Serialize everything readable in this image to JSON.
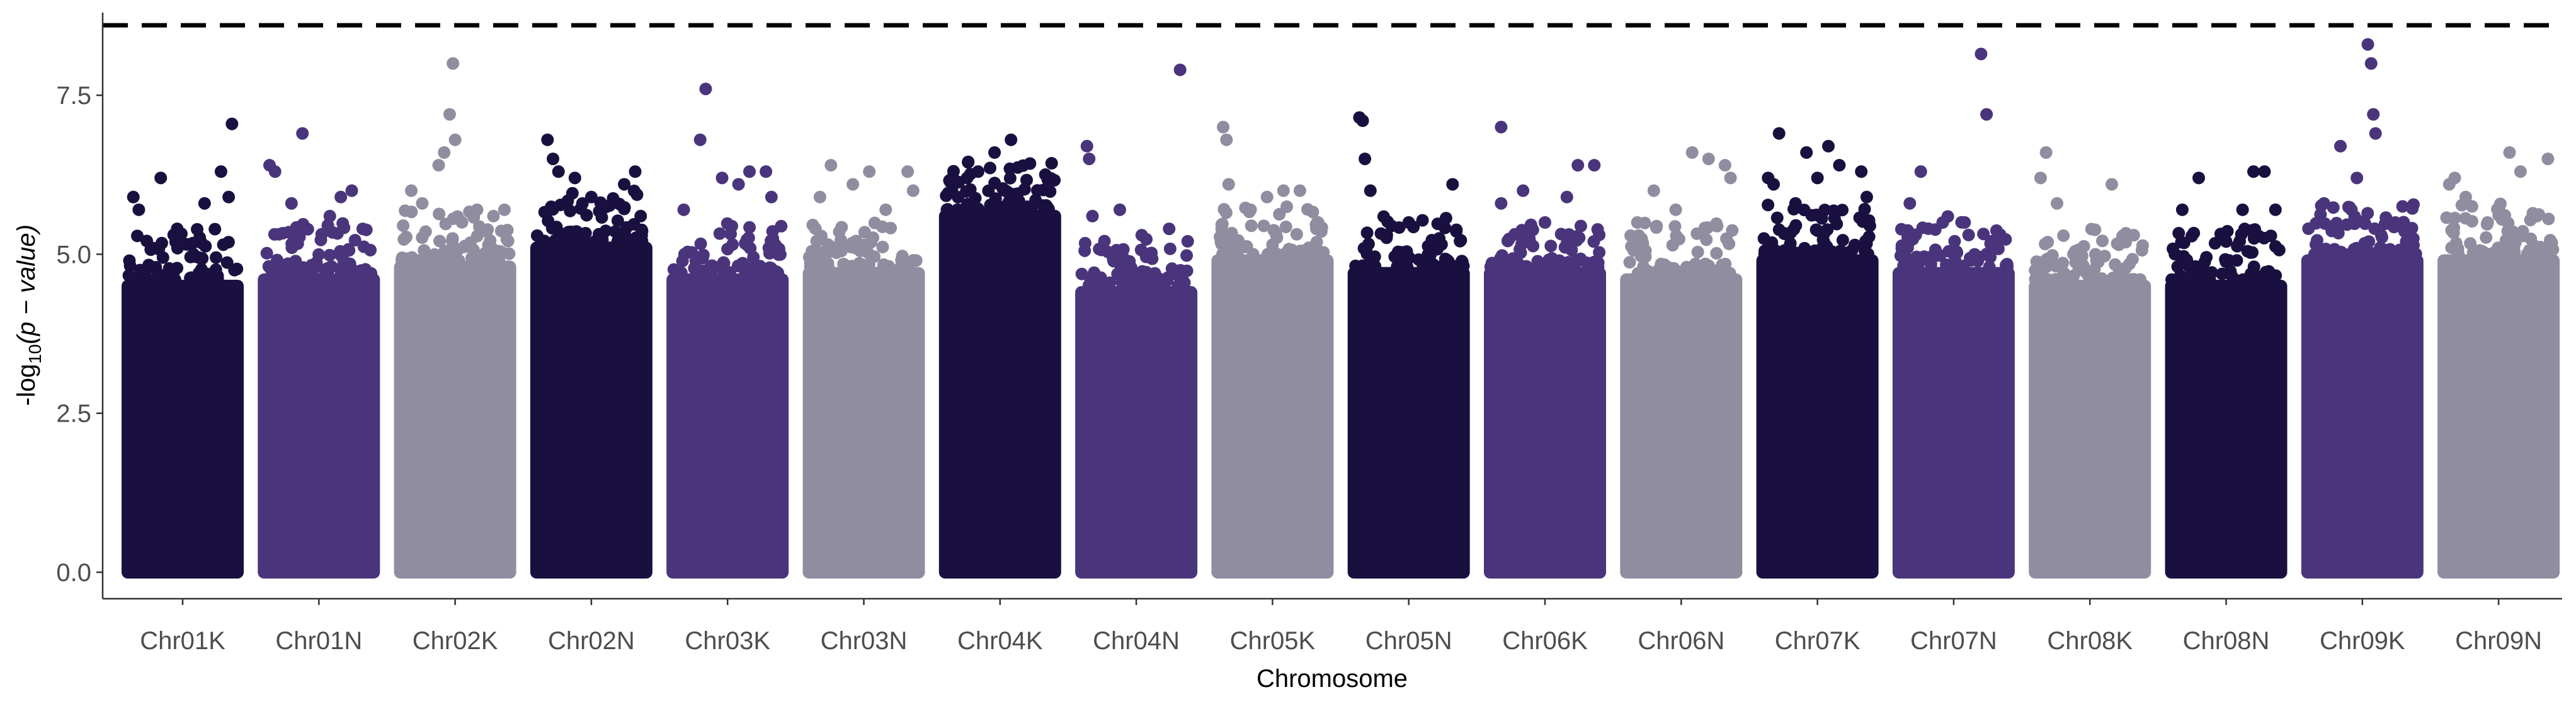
{
  "chart_data": {
    "type": "scatter",
    "subtype": "manhattan",
    "title": "",
    "xlabel": "Chromosome",
    "ylabel_prefix": "-log",
    "ylabel_sub": "10",
    "ylabel_expr": "(p − value)",
    "ylim": [
      0,
      8.8
    ],
    "yticks": [
      "0.0",
      "2.5",
      "5.0",
      "7.5"
    ],
    "ytick_values": [
      0,
      2.5,
      5.0,
      7.5
    ],
    "threshold": 8.6,
    "grid": false,
    "legend": "none",
    "palette": [
      "#1a1040",
      "#4a357c",
      "#918da0"
    ],
    "categories": [
      "Chr01K",
      "Chr01N",
      "Chr02K",
      "Chr02N",
      "Chr03K",
      "Chr03N",
      "Chr04K",
      "Chr04N",
      "Chr05K",
      "Chr05N",
      "Chr06K",
      "Chr06N",
      "Chr07K",
      "Chr07N",
      "Chr08K",
      "Chr08N",
      "Chr09K",
      "Chr09N"
    ],
    "series": [
      {
        "chromosome": "Chr01K",
        "dense_top": 4.6,
        "top_points": [
          [
            0.05,
            5.9
          ],
          [
            0.1,
            5.7
          ],
          [
            0.3,
            6.2
          ],
          [
            0.45,
            5.4
          ],
          [
            0.7,
            5.8
          ],
          [
            0.85,
            6.3
          ],
          [
            0.95,
            7.05
          ],
          [
            0.92,
            5.9
          ],
          [
            0.6,
            5.0
          ]
        ]
      },
      {
        "chromosome": "Chr01N",
        "dense_top": 4.7,
        "top_points": [
          [
            0.05,
            6.4
          ],
          [
            0.1,
            6.3
          ],
          [
            0.25,
            5.8
          ],
          [
            0.35,
            6.9
          ],
          [
            0.6,
            5.6
          ],
          [
            0.7,
            5.9
          ],
          [
            0.8,
            6.0
          ],
          [
            0.9,
            5.4
          ]
        ]
      },
      {
        "chromosome": "Chr02K",
        "dense_top": 4.9,
        "top_points": [
          [
            0.1,
            6.0
          ],
          [
            0.2,
            5.8
          ],
          [
            0.35,
            6.4
          ],
          [
            0.4,
            6.6
          ],
          [
            0.45,
            7.2
          ],
          [
            0.48,
            8.0
          ],
          [
            0.5,
            6.8
          ],
          [
            0.7,
            5.7
          ],
          [
            0.85,
            5.6
          ],
          [
            0.95,
            5.7
          ]
        ]
      },
      {
        "chromosome": "Chr02N",
        "dense_top": 5.2,
        "top_points": [
          [
            0.1,
            6.8
          ],
          [
            0.15,
            6.5
          ],
          [
            0.2,
            6.3
          ],
          [
            0.35,
            6.2
          ],
          [
            0.5,
            5.9
          ],
          [
            0.8,
            6.1
          ],
          [
            0.9,
            6.3
          ],
          [
            0.95,
            5.6
          ]
        ]
      },
      {
        "chromosome": "Chr03K",
        "dense_top": 4.7,
        "top_points": [
          [
            0.1,
            5.7
          ],
          [
            0.25,
            6.8
          ],
          [
            0.3,
            7.6
          ],
          [
            0.45,
            6.2
          ],
          [
            0.6,
            6.1
          ],
          [
            0.7,
            6.3
          ],
          [
            0.85,
            6.3
          ],
          [
            0.9,
            5.9
          ]
        ]
      },
      {
        "chromosome": "Chr03N",
        "dense_top": 4.8,
        "top_points": [
          [
            0.1,
            5.9
          ],
          [
            0.2,
            6.4
          ],
          [
            0.4,
            6.1
          ],
          [
            0.55,
            6.3
          ],
          [
            0.7,
            5.7
          ],
          [
            0.9,
            6.3
          ],
          [
            0.95,
            6.0
          ]
        ]
      },
      {
        "chromosome": "Chr04K",
        "dense_top": 5.7,
        "top_points": [
          [
            0.2,
            6.2
          ],
          [
            0.3,
            6.3
          ],
          [
            0.45,
            6.6
          ],
          [
            0.55,
            6.0
          ],
          [
            0.6,
            6.8
          ],
          [
            0.75,
            5.6
          ],
          [
            0.9,
            4.9
          ]
        ]
      },
      {
        "chromosome": "Chr04N",
        "dense_top": 4.5,
        "top_points": [
          [
            0.05,
            6.7
          ],
          [
            0.07,
            6.5
          ],
          [
            0.1,
            5.6
          ],
          [
            0.35,
            5.7
          ],
          [
            0.55,
            5.3
          ],
          [
            0.8,
            5.4
          ],
          [
            0.9,
            7.9
          ]
        ]
      },
      {
        "chromosome": "Chr05K",
        "dense_top": 5.0,
        "top_points": [
          [
            0.05,
            7.0
          ],
          [
            0.08,
            6.8
          ],
          [
            0.1,
            6.1
          ],
          [
            0.3,
            5.7
          ],
          [
            0.45,
            5.9
          ],
          [
            0.6,
            6.0
          ],
          [
            0.75,
            6.0
          ],
          [
            0.9,
            5.4
          ]
        ]
      },
      {
        "chromosome": "Chr05N",
        "dense_top": 4.8,
        "top_points": [
          [
            0.05,
            7.15
          ],
          [
            0.08,
            7.1
          ],
          [
            0.1,
            6.5
          ],
          [
            0.15,
            6.0
          ],
          [
            0.3,
            5.3
          ],
          [
            0.5,
            5.5
          ],
          [
            0.7,
            5.0
          ],
          [
            0.9,
            6.1
          ]
        ]
      },
      {
        "chromosome": "Chr06K",
        "dense_top": 4.8,
        "top_points": [
          [
            0.1,
            5.8
          ],
          [
            0.1,
            7.0
          ],
          [
            0.3,
            6.0
          ],
          [
            0.5,
            5.5
          ],
          [
            0.7,
            5.9
          ],
          [
            0.8,
            6.4
          ],
          [
            0.95,
            6.4
          ]
        ]
      },
      {
        "chromosome": "Chr06N",
        "dense_top": 4.7,
        "top_points": [
          [
            0.1,
            5.5
          ],
          [
            0.25,
            6.0
          ],
          [
            0.45,
            5.7
          ],
          [
            0.6,
            6.6
          ],
          [
            0.75,
            6.5
          ],
          [
            0.9,
            6.4
          ],
          [
            0.95,
            6.2
          ]
        ]
      },
      {
        "chromosome": "Chr07K",
        "dense_top": 5.0,
        "top_points": [
          [
            0.05,
            6.2
          ],
          [
            0.1,
            6.1
          ],
          [
            0.15,
            6.9
          ],
          [
            0.3,
            5.8
          ],
          [
            0.4,
            6.6
          ],
          [
            0.5,
            6.2
          ],
          [
            0.6,
            6.7
          ],
          [
            0.7,
            6.4
          ],
          [
            0.9,
            6.3
          ],
          [
            0.95,
            5.9
          ]
        ]
      },
      {
        "chromosome": "Chr07N",
        "dense_top": 4.8,
        "top_points": [
          [
            0.1,
            5.8
          ],
          [
            0.2,
            6.3
          ],
          [
            0.4,
            5.5
          ],
          [
            0.6,
            5.5
          ],
          [
            0.75,
            8.15
          ],
          [
            0.8,
            7.2
          ],
          [
            0.9,
            5.2
          ]
        ]
      },
      {
        "chromosome": "Chr08K",
        "dense_top": 4.6,
        "top_points": [
          [
            0.05,
            6.2
          ],
          [
            0.1,
            6.6
          ],
          [
            0.2,
            5.8
          ],
          [
            0.35,
            5.0
          ],
          [
            0.55,
            5.0
          ],
          [
            0.7,
            6.1
          ],
          [
            0.9,
            5.3
          ]
        ]
      },
      {
        "chromosome": "Chr08N",
        "dense_top": 4.6,
        "top_points": [
          [
            0.1,
            5.7
          ],
          [
            0.25,
            6.2
          ],
          [
            0.5,
            5.2
          ],
          [
            0.65,
            5.7
          ],
          [
            0.75,
            6.3
          ],
          [
            0.85,
            6.3
          ],
          [
            0.95,
            5.7
          ]
        ]
      },
      {
        "chromosome": "Chr09K",
        "dense_top": 5.0,
        "top_points": [
          [
            0.15,
            5.8
          ],
          [
            0.3,
            6.7
          ],
          [
            0.4,
            5.7
          ],
          [
            0.45,
            6.2
          ],
          [
            0.55,
            8.3
          ],
          [
            0.58,
            8.0
          ],
          [
            0.6,
            7.2
          ],
          [
            0.62,
            6.9
          ],
          [
            0.8,
            5.5
          ],
          [
            0.9,
            5.2
          ]
        ]
      },
      {
        "chromosome": "Chr09N",
        "dense_top": 5.0,
        "top_points": [
          [
            0.05,
            6.1
          ],
          [
            0.1,
            6.2
          ],
          [
            0.2,
            5.9
          ],
          [
            0.4,
            5.5
          ],
          [
            0.6,
            6.6
          ],
          [
            0.7,
            6.3
          ],
          [
            0.85,
            5.6
          ],
          [
            0.95,
            6.5
          ]
        ]
      }
    ]
  }
}
